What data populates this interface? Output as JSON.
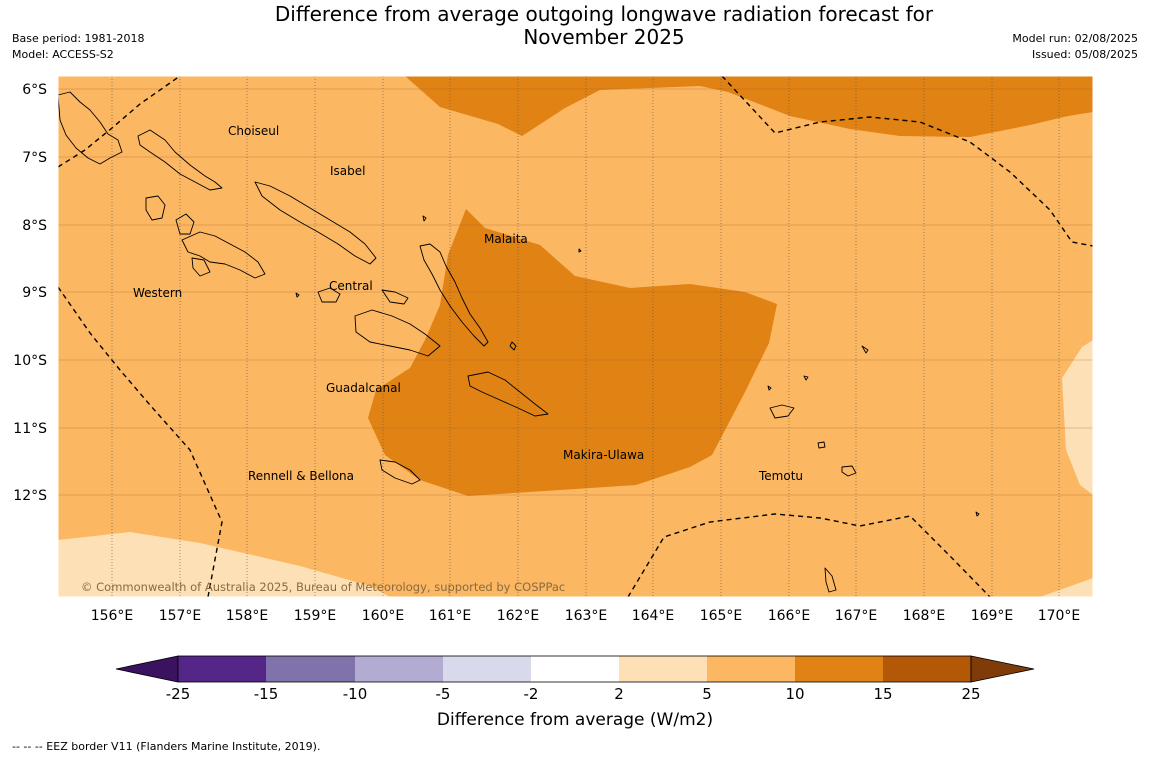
{
  "header": {
    "title_line1": "Difference from average outgoing longwave radiation forecast for",
    "title_line2": "November 2025",
    "base_period": "Base period: 1981-2018",
    "model": "Model: ACCESS-S2",
    "model_run": "Model run: 02/08/2025",
    "issued": "Issued: 05/08/2025"
  },
  "map": {
    "lon_ticks": [
      "156°E",
      "157°E",
      "158°E",
      "159°E",
      "160°E",
      "161°E",
      "162°E",
      "163°E",
      "164°E",
      "165°E",
      "166°E",
      "167°E",
      "168°E",
      "169°E",
      "170°E"
    ],
    "lat_ticks": [
      "6°S",
      "7°S",
      "8°S",
      "9°S",
      "10°S",
      "11°S",
      "12°S"
    ],
    "regions": [
      "Choiseul",
      "Isabel",
      "Malaita",
      "Western",
      "Central",
      "Guadalcanal",
      "Makira-Ulawa",
      "Rennell & Bellona",
      "Temotu"
    ],
    "copyright": "© Commonwealth of Australia 2025, Bureau of Meteorology, supported by COSPPac"
  },
  "colorbar": {
    "label": "Difference from average (W/m2)",
    "ticks": [
      "-25",
      "-15",
      "-10",
      "-5",
      "-2",
      "2",
      "5",
      "10",
      "15",
      "25"
    ],
    "colors": [
      "#3b1260",
      "#542688",
      "#8073ac",
      "#b2abd2",
      "#d8daeb",
      "#ffffff",
      "#fee0b6",
      "#fbb761",
      "#e08214",
      "#b35806",
      "#7f3b08"
    ]
  },
  "footnote": "--  --  -- EEZ border V11 (Flanders Marine Institute, 2019)."
}
